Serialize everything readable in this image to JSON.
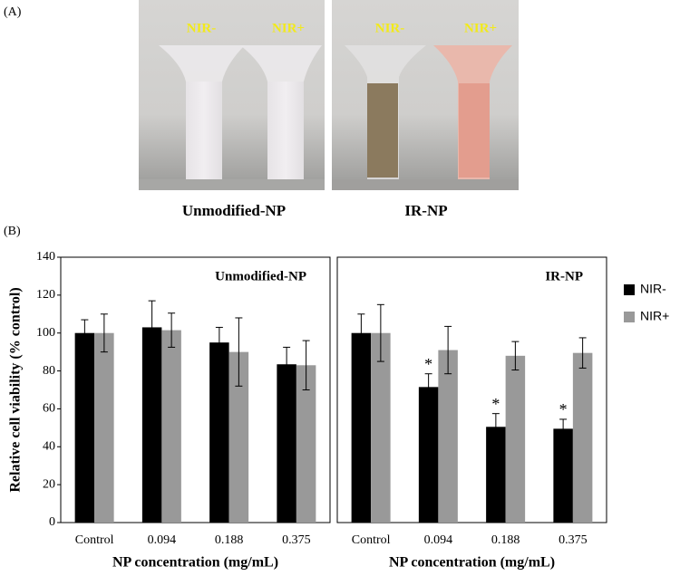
{
  "figure": {
    "panel_a": "(A)",
    "panel_b": "(B)",
    "photos": [
      {
        "caption": "Unmodified-NP",
        "labels": [
          "NIR-",
          "NIR+"
        ]
      },
      {
        "caption": "IR-NP",
        "labels": [
          "NIR-",
          "NIR+"
        ]
      }
    ]
  },
  "chart_data": [
    {
      "type": "bar",
      "title": "Unmodified-NP",
      "xlabel": "NP concentration (mg/mL)",
      "ylabel": "Relative cell viability (% control)",
      "categories": [
        "Control",
        "0.094",
        "0.188",
        "0.375"
      ],
      "series": [
        {
          "color": "#000000",
          "values": [
            100,
            103,
            95,
            83.5
          ],
          "errors": [
            7,
            14,
            8,
            9
          ]
        },
        {
          "color": "#999999",
          "values": [
            100,
            101.5,
            90,
            83
          ],
          "errors": [
            10,
            9,
            18,
            13
          ]
        }
      ],
      "ylim": [
        0,
        140
      ],
      "yticks": [
        0,
        20,
        40,
        60,
        80,
        100,
        120,
        140
      ]
    },
    {
      "type": "bar",
      "title": "IR-NP",
      "xlabel": "NP concentration (mg/mL)",
      "categories": [
        "Control",
        "0.094",
        "0.188",
        "0.375"
      ],
      "series": [
        {
          "name": "NIR-",
          "color": "#000000",
          "values": [
            100,
            71.5,
            50.5,
            49.5
          ],
          "errors": [
            10,
            7,
            7,
            5
          ],
          "significance": [
            null,
            "*",
            "*",
            "*"
          ]
        },
        {
          "name": "NIR+",
          "color": "#999999",
          "values": [
            100,
            91,
            88,
            89.5
          ],
          "errors": [
            15,
            12.5,
            7.5,
            8
          ]
        }
      ],
      "ylim": [
        0,
        140
      ],
      "legend": "right"
    }
  ]
}
